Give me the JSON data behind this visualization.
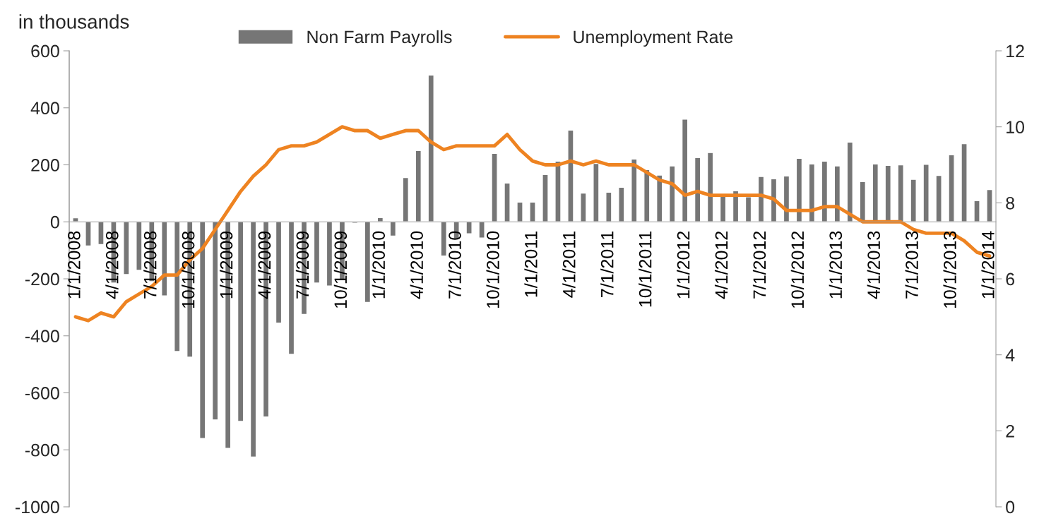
{
  "chart_data": {
    "type": "bar",
    "ylabel": "in thousands",
    "categories": [
      "1/1/2008",
      null,
      null,
      "4/1/2008",
      null,
      null,
      "7/1/2008",
      null,
      null,
      "10/1/2008",
      null,
      null,
      "1/1/2009",
      null,
      null,
      "4/1/2009",
      null,
      null,
      "7/1/2009",
      null,
      null,
      "10/1/2009",
      null,
      null,
      "1/1/2010",
      null,
      null,
      "4/1/2010",
      null,
      null,
      "7/1/2010",
      null,
      null,
      "10/1/2010",
      null,
      null,
      "1/1/2011",
      null,
      null,
      "4/1/2011",
      null,
      null,
      "7/1/2011",
      null,
      null,
      "10/1/2011",
      null,
      null,
      "1/1/2012",
      null,
      null,
      "4/1/2012",
      null,
      null,
      "7/1/2012",
      null,
      null,
      "10/1/2012",
      null,
      null,
      "1/1/2013",
      null,
      null,
      "4/1/2013",
      null,
      null,
      "7/1/2013",
      null,
      null,
      "10/1/2013",
      null,
      null,
      "1/1/2014"
    ],
    "series": [
      {
        "name": "Non Farm Payrolls",
        "color": "#767676",
        "values": [
          14,
          -85,
          -80,
          -215,
          -185,
          -170,
          -210,
          -260,
          -455,
          -475,
          -760,
          -695,
          -795,
          -700,
          -825,
          -685,
          -355,
          -465,
          -325,
          -215,
          -225,
          -205,
          -5,
          -283,
          15,
          -50,
          155,
          250,
          515,
          -120,
          -59,
          -42,
          -57,
          240,
          136,
          69,
          69,
          166,
          213,
          322,
          101,
          205,
          104,
          121,
          220,
          183,
          164,
          196,
          360,
          225,
          243,
          95,
          109,
          88,
          159,
          151,
          161,
          223,
          203,
          213,
          196,
          280,
          141,
          203,
          198,
          200,
          149,
          202,
          163,
          235,
          274,
          74,
          113
        ]
      },
      {
        "name": "Unemployment Rate",
        "type": "line",
        "axis": "y2",
        "color": "#ee8321",
        "values": [
          5.0,
          4.9,
          5.1,
          5.0,
          5.4,
          5.6,
          5.8,
          6.1,
          6.1,
          6.5,
          6.8,
          7.3,
          7.8,
          8.3,
          8.7,
          9.0,
          9.4,
          9.5,
          9.5,
          9.6,
          9.8,
          10.0,
          9.9,
          9.9,
          9.7,
          9.8,
          9.9,
          9.9,
          9.6,
          9.4,
          9.5,
          9.5,
          9.5,
          9.5,
          9.8,
          9.4,
          9.1,
          9.0,
          9.0,
          9.1,
          9.0,
          9.1,
          9.0,
          9.0,
          9.0,
          8.8,
          8.6,
          8.5,
          8.2,
          8.3,
          8.2,
          8.2,
          8.2,
          8.2,
          8.2,
          8.1,
          7.8,
          7.8,
          7.8,
          7.9,
          7.9,
          7.7,
          7.5,
          7.5,
          7.5,
          7.5,
          7.3,
          7.2,
          7.2,
          7.2,
          7.0,
          6.7,
          6.6
        ]
      }
    ],
    "ylim": [
      -1000,
      600
    ],
    "yticks": [
      -1000,
      -800,
      -600,
      -400,
      -200,
      0,
      200,
      400,
      600
    ],
    "y2lim": [
      0,
      12
    ],
    "y2ticks": [
      0,
      2,
      4,
      6,
      8,
      10,
      12
    ],
    "grid": false,
    "legend": "top",
    "marker": "none",
    "line_style": "solid"
  }
}
